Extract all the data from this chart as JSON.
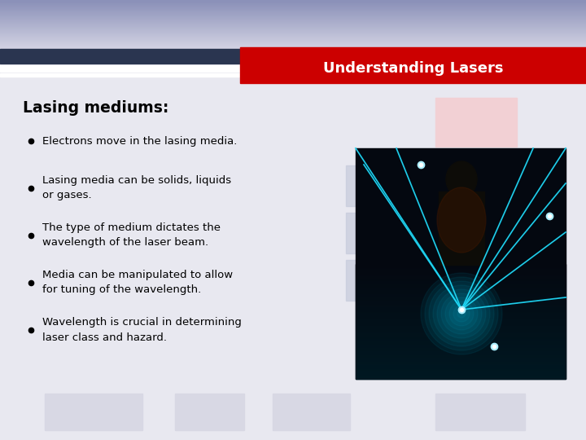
{
  "title": "Understanding Lasers",
  "heading": "Lasing mediums:",
  "bullets": [
    "Electrons move in the lasing media.",
    "Lasing media can be solids, liquids\nor gases.",
    "The type of medium dictates the\nwavelength of the laser beam.",
    "Media can be manipulated to allow\nfor tuning of the wavelength.",
    "Wavelength is crucial in determining\nlaser class and hazard."
  ],
  "bg_main": "#e8e8f0",
  "bg_top_light": "#c8ccdd",
  "bg_top_dark": "#2e3a58",
  "title_bar_color": "#cc0000",
  "title_text_color": "#ffffff",
  "heading_color": "#000000",
  "bullet_color": "#000000",
  "accent_pink": "#f2d0d4",
  "accent_blue": "#c8ccdd",
  "bottom_box_color": "#d8d8e4",
  "white": "#ffffff",
  "dark_navy": "#2a3550"
}
